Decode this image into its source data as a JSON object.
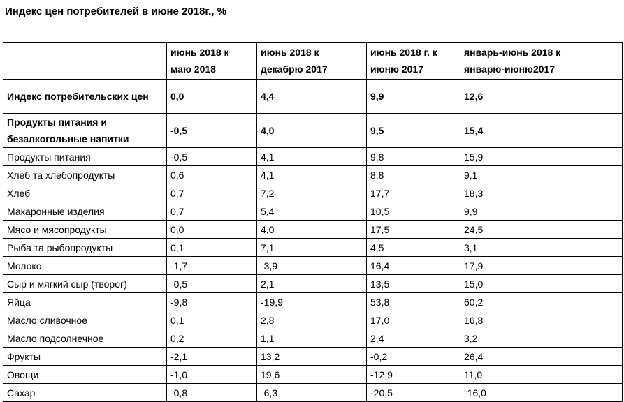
{
  "page_title": "Индекс цен потребителей в июне 2018г., %",
  "colors": {
    "text": "#000000",
    "border": "#000000",
    "background": "#ffffff"
  },
  "table": {
    "corner_cell": "",
    "column_headers": [
      "июнь 2018 к\nмаю 2018",
      "июнь 2018 к\nдекабрю 2017",
      "июнь 2018 г. к\nиюню 2017",
      "январь-июнь 2018 к\nянварю-июню2017"
    ],
    "rows": [
      {
        "label": "Индекс потребительских цен",
        "bold": true,
        "values": [
          "0,0",
          "4,4",
          "9,9",
          "12,6"
        ]
      },
      {
        "label": "Продукты питания и безалкогольные напитки",
        "bold": true,
        "values": [
          "-0,5",
          "4,0",
          "9,5",
          "15,4"
        ]
      },
      {
        "label": "Продукты питания",
        "bold": false,
        "values": [
          "-0,5",
          "4,1",
          "9,8",
          "15,9"
        ]
      },
      {
        "label": "Хлеб та хлебопродукты",
        "bold": false,
        "values": [
          "0,6",
          "4,1",
          "8,8",
          "9,1"
        ]
      },
      {
        "label": "Хлеб",
        "bold": false,
        "values": [
          "0,7",
          "7,2",
          "17,7",
          "18,3"
        ]
      },
      {
        "label": "Макаронные изделия",
        "bold": false,
        "values": [
          "0,7",
          "5,4",
          "10,5",
          "9,9"
        ]
      },
      {
        "label": "Мясо и мясопродукты",
        "bold": false,
        "values": [
          "0,0",
          "4,0",
          "17,5",
          "24,5"
        ]
      },
      {
        "label": "Рыба та рыбопродукты",
        "bold": false,
        "values": [
          "0,1",
          "7,1",
          "4,5",
          "3,1"
        ]
      },
      {
        "label": "Молоко",
        "bold": false,
        "values": [
          "-1,7",
          "-3,9",
          "16,4",
          "17,9"
        ]
      },
      {
        "label": "Сыр и мягкий сыр (творог)",
        "bold": false,
        "values": [
          "-0,5",
          "2,1",
          "13,5",
          "15,0"
        ]
      },
      {
        "label": "Яйца",
        "bold": false,
        "values": [
          "-9,8",
          "-19,9",
          "53,8",
          "60,2"
        ]
      },
      {
        "label": "Масло сливочное",
        "bold": false,
        "values": [
          "0,1",
          "2,8",
          "17,0",
          "16,8"
        ]
      },
      {
        "label": "Масло подсолнечное",
        "bold": false,
        "values": [
          "0,2",
          "1,1",
          "2,4",
          "3,2"
        ]
      },
      {
        "label": "Фрукты",
        "bold": false,
        "values": [
          "-2,1",
          "13,2",
          "-0,2",
          "26,4"
        ]
      },
      {
        "label": "Овощи",
        "bold": false,
        "values": [
          "-1,0",
          "19,6",
          "-12,9",
          "11,0"
        ]
      },
      {
        "label": "Сахар",
        "bold": false,
        "values": [
          "-0,8",
          "-6,3",
          "-20,5",
          "-16,0"
        ]
      }
    ]
  }
}
